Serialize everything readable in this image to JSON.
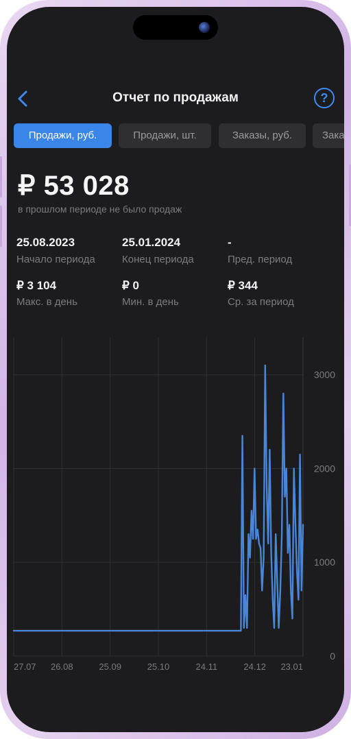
{
  "nav": {
    "title": "Отчет по продажам",
    "back_icon": "chevron-left-icon",
    "help_label": "?"
  },
  "tabs": [
    {
      "label": "Продажи, руб.",
      "active": true
    },
    {
      "label": "Продажи, шт.",
      "active": false
    },
    {
      "label": "Заказы, руб.",
      "active": false
    },
    {
      "label": "Зака",
      "active": false
    }
  ],
  "summary": {
    "total": "₽ 53 028",
    "comparison_note": "в прошлом периоде не было продаж"
  },
  "stats": [
    {
      "value": "25.08.2023",
      "label": "Начало периода"
    },
    {
      "value": "25.01.2024",
      "label": "Конец периода"
    },
    {
      "value": "-",
      "label": "Пред. период"
    },
    {
      "value": "₽ 3 104",
      "label": "Макс. в день"
    },
    {
      "value": "₽ 0",
      "label": "Мин. в день"
    },
    {
      "value": "₽ 344",
      "label": "Ср. за период"
    }
  ],
  "colors": {
    "accent": "#3a85e8",
    "line": "#4a86d8",
    "background": "#1c1c1e",
    "muted_text": "#7c7c80"
  },
  "chart_data": {
    "type": "line",
    "x_tick_labels": [
      "27.07",
      "26.08",
      "25.09",
      "25.10",
      "24.11",
      "24.12",
      "23.01"
    ],
    "y_tick_labels": [
      "0",
      "1000",
      "2000",
      "3000"
    ],
    "ylim": [
      0,
      3400
    ],
    "grid": true,
    "y_axis_side": "right",
    "series": [
      {
        "x_index": [
          0,
          55,
          110,
          150,
          151,
          152,
          153,
          154,
          155,
          156,
          157,
          158,
          159,
          160,
          161,
          162,
          163,
          164,
          165,
          166,
          167,
          168,
          169,
          170,
          171,
          172,
          173,
          174,
          175,
          176,
          177,
          178,
          179,
          180,
          181,
          182,
          183,
          184,
          185,
          186,
          187,
          188,
          189,
          190,
          191
        ],
        "values": [
          270,
          270,
          270,
          270,
          2350,
          300,
          650,
          300,
          1300,
          1050,
          1550,
          1250,
          2000,
          1250,
          1350,
          1200,
          1150,
          700,
          1050,
          3100,
          1800,
          1200,
          2200,
          1100,
          600,
          300,
          1300,
          800,
          300,
          700,
          1300,
          2800,
          1700,
          2000,
          1100,
          1400,
          700,
          400,
          2000,
          1400,
          900,
          600,
          2150,
          700,
          1400
        ]
      }
    ],
    "x_domain": [
      0,
      191
    ]
  }
}
